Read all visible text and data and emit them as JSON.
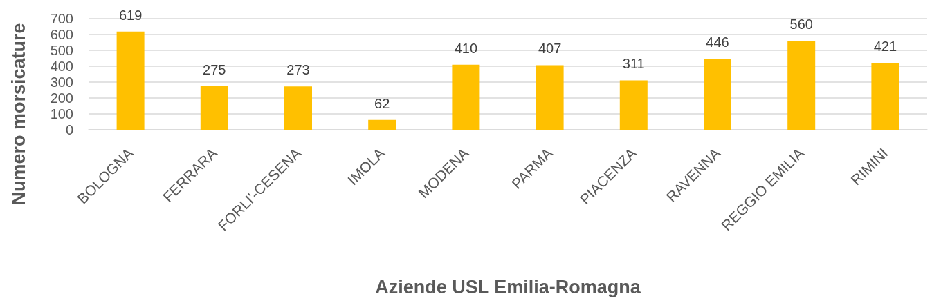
{
  "chart_data": {
    "type": "bar",
    "xlabel": "Aziende USL Emilia-Romagna",
    "ylabel": "Numero morsicature",
    "categories": [
      "BOLOGNA",
      "FERRARA",
      "FORLI'-CESENA",
      "IMOLA",
      "MODENA",
      "PARMA",
      "PIACENZA",
      "RAVENNA",
      "REGGIO EMILIA",
      "RIMINI"
    ],
    "values": [
      619,
      275,
      273,
      62,
      410,
      407,
      311,
      446,
      560,
      421
    ],
    "color": "#ffc000",
    "ylim": [
      0,
      700
    ],
    "yticks": [
      0,
      100,
      200,
      300,
      400,
      500,
      600,
      700
    ],
    "grid": "y",
    "data_labels": true
  }
}
